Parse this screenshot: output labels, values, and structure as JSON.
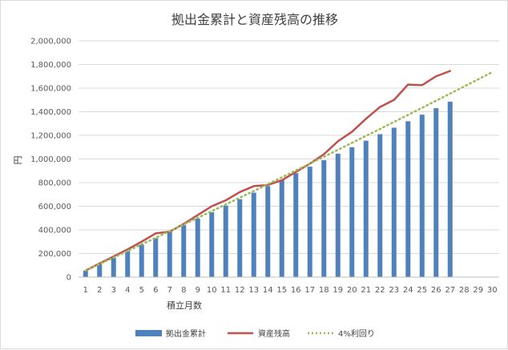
{
  "chart_data": {
    "type": "bar",
    "title": "拠出金累計と資産残高の推移",
    "xlabel": "積立月数",
    "ylabel": "円",
    "ylim": [
      0,
      2000000
    ],
    "y_ticks": [
      "0",
      "200,000",
      "400,000",
      "600,000",
      "800,000",
      "1,000,000",
      "1,200,000",
      "1,400,000",
      "1,600,000",
      "1,800,000",
      "2,000,000"
    ],
    "categories": [
      "1",
      "2",
      "3",
      "4",
      "5",
      "6",
      "7",
      "8",
      "9",
      "10",
      "11",
      "12",
      "13",
      "14",
      "15",
      "16",
      "17",
      "18",
      "19",
      "20",
      "21",
      "22",
      "23",
      "24",
      "25",
      "26",
      "27",
      "28",
      "29",
      "30"
    ],
    "grid": true,
    "legend_position": "bottom",
    "series": [
      {
        "name": "拠出金累計",
        "kind": "bar",
        "color": "#4f81bd",
        "values": [
          55000,
          110000,
          165000,
          220000,
          275000,
          330000,
          385000,
          440000,
          495000,
          550000,
          605000,
          660000,
          715000,
          770000,
          825000,
          880000,
          935000,
          990000,
          1045000,
          1100000,
          1155000,
          1210000,
          1265000,
          1320000,
          1375000,
          1430000,
          1485000,
          null,
          null,
          null
        ]
      },
      {
        "name": "資産残高",
        "kind": "line",
        "color": "#c0504d",
        "values": [
          55000,
          115000,
          175000,
          235000,
          300000,
          370000,
          385000,
          450000,
          525000,
          600000,
          650000,
          720000,
          770000,
          780000,
          820000,
          890000,
          960000,
          1040000,
          1150000,
          1230000,
          1340000,
          1440000,
          1500000,
          1630000,
          1625000,
          1700000,
          1745000,
          null,
          null,
          null
        ]
      },
      {
        "name": "4%利回り",
        "kind": "dotted-line",
        "color": "#9bbb59",
        "values": [
          55000,
          110200,
          165600,
          221100,
          276800,
          332700,
          388800,
          445100,
          501600,
          558300,
          615200,
          672200,
          729500,
          787000,
          844700,
          902600,
          960700,
          1019000,
          1077500,
          1136200,
          1195100,
          1254300,
          1313600,
          1373200,
          1432900,
          1492900,
          1553100,
          1613500,
          1674200,
          1735100
        ]
      }
    ]
  }
}
